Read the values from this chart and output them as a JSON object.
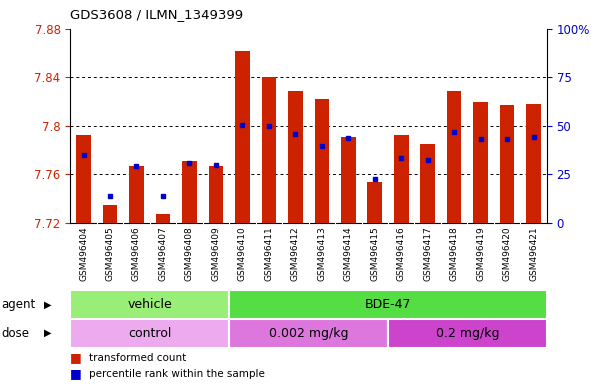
{
  "title": "GDS3608 / ILMN_1349399",
  "samples": [
    "GSM496404",
    "GSM496405",
    "GSM496406",
    "GSM496407",
    "GSM496408",
    "GSM496409",
    "GSM496410",
    "GSM496411",
    "GSM496412",
    "GSM496413",
    "GSM496414",
    "GSM496415",
    "GSM496416",
    "GSM496417",
    "GSM496418",
    "GSM496419",
    "GSM496420",
    "GSM496421"
  ],
  "red_values": [
    7.792,
    7.735,
    7.767,
    7.727,
    7.771,
    7.767,
    7.862,
    7.84,
    7.829,
    7.822,
    7.791,
    7.754,
    7.792,
    7.785,
    7.829,
    7.82,
    7.817,
    7.818
  ],
  "blue_values": [
    7.776,
    7.742,
    7.767,
    7.742,
    7.769,
    7.768,
    7.801,
    7.8,
    7.793,
    7.783,
    7.79,
    7.756,
    7.773,
    7.772,
    7.795,
    7.789,
    7.789,
    7.791
  ],
  "ymin": 7.72,
  "ymax": 7.88,
  "yticks": [
    7.72,
    7.76,
    7.8,
    7.84,
    7.88
  ],
  "ytick_labels": [
    "7.72",
    "7.76",
    "7.8",
    "7.84",
    "7.88"
  ],
  "right_yticks": [
    0,
    25,
    50,
    75,
    100
  ],
  "right_ytick_labels": [
    "0",
    "25",
    "50",
    "75",
    "100%"
  ],
  "bar_color": "#cc2200",
  "blue_color": "#0000cc",
  "agent_groups": [
    {
      "label": "vehicle",
      "start": 0,
      "end": 5,
      "color": "#99ee77"
    },
    {
      "label": "BDE-47",
      "start": 6,
      "end": 17,
      "color": "#55dd44"
    }
  ],
  "dose_groups": [
    {
      "label": "control",
      "start": 0,
      "end": 5,
      "color": "#eeaaee"
    },
    {
      "label": "0.002 mg/kg",
      "start": 6,
      "end": 11,
      "color": "#dd77dd"
    },
    {
      "label": "0.2 mg/kg",
      "start": 12,
      "end": 17,
      "color": "#cc44cc"
    }
  ],
  "legend_red": "transformed count",
  "legend_blue": "percentile rank within the sample",
  "agent_label": "agent",
  "dose_label": "dose",
  "bg_color": "#ffffff",
  "tick_label_color_left": "#cc2200",
  "tick_label_color_right": "#0000cc",
  "tick_area_bg": "#dddddd",
  "spine_color": "#000000"
}
